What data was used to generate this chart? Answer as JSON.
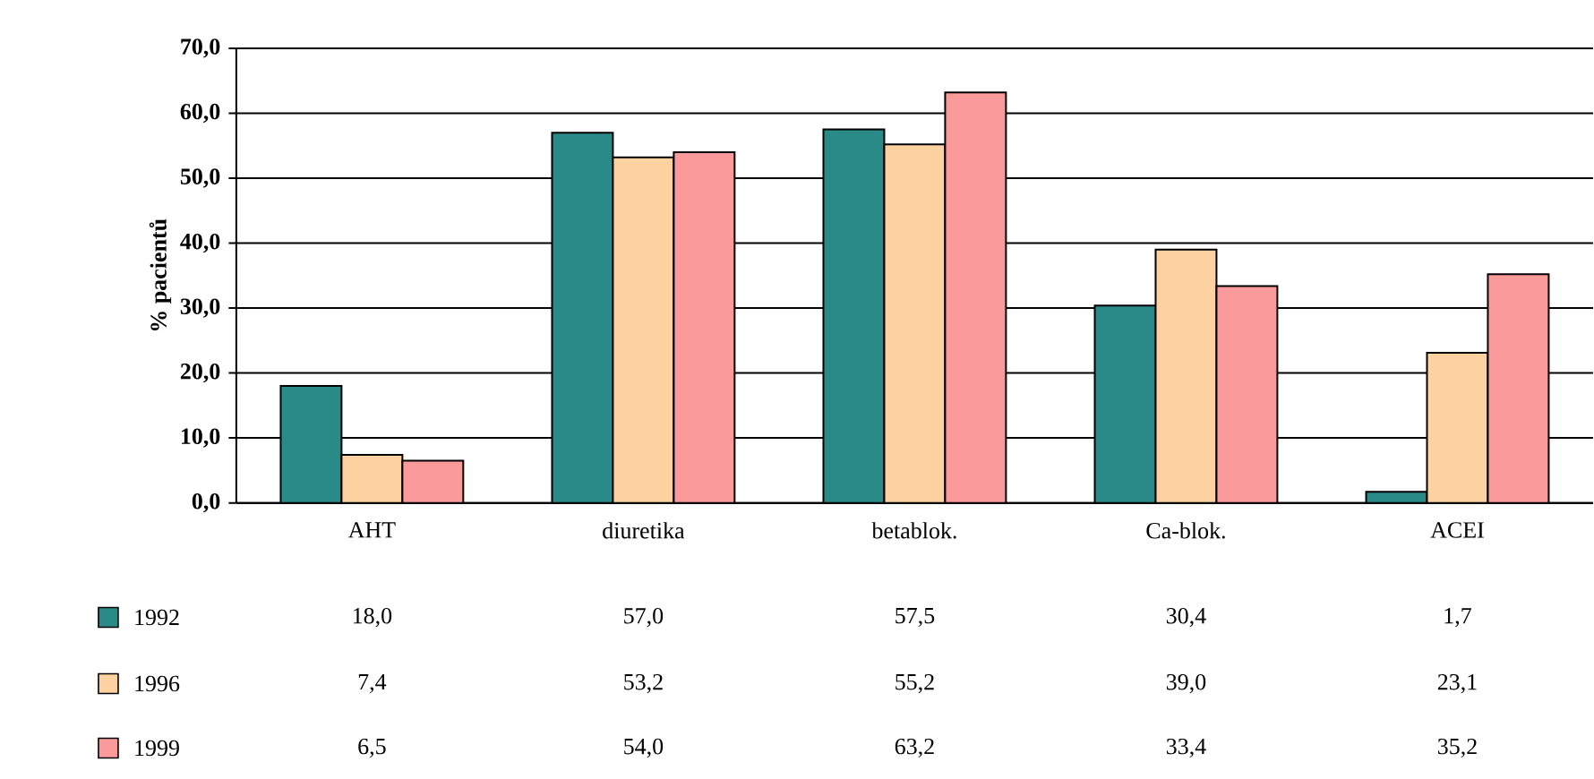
{
  "chart_data": {
    "type": "bar",
    "ylabel": "% pacientů",
    "categories": [
      "AHT",
      "diuretika",
      "betablok.",
      "Ca-blok.",
      "ACEI"
    ],
    "series": [
      {
        "name": "1992",
        "color": "#2a8a88",
        "values": [
          18.0,
          57.0,
          57.5,
          30.4,
          1.7
        ],
        "value_labels": [
          "18,0",
          "57,0",
          "57,5",
          "30,4",
          "1,7"
        ]
      },
      {
        "name": "1996",
        "color": "#fdd1a0",
        "values": [
          7.4,
          53.2,
          55.2,
          39.0,
          23.1
        ],
        "value_labels": [
          "7,4",
          "53,2",
          "55,2",
          "39,0",
          "23,1"
        ]
      },
      {
        "name": "1999",
        "color": "#fb9a9a",
        "values": [
          6.5,
          54.0,
          63.2,
          33.4,
          35.2
        ],
        "value_labels": [
          "6,5",
          "54,0",
          "63,2",
          "33,4",
          "35,2"
        ]
      }
    ],
    "ylim": [
      0,
      70
    ],
    "yticks": [
      {
        "value": 0,
        "label": "0,0"
      },
      {
        "value": 10,
        "label": "10,0"
      },
      {
        "value": 20,
        "label": "20,0"
      },
      {
        "value": 30,
        "label": "30,0"
      },
      {
        "value": 40,
        "label": "40,0"
      },
      {
        "value": 50,
        "label": "50,0"
      },
      {
        "value": 60,
        "label": "60,0"
      },
      {
        "value": 70,
        "label": "70,0"
      }
    ],
    "grid": "y",
    "legend": "bottom"
  }
}
